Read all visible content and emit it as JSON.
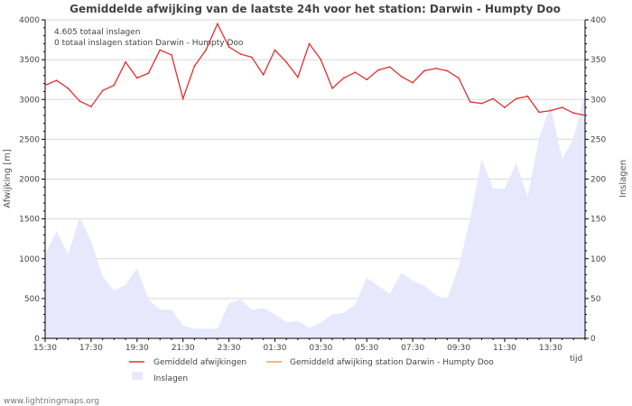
{
  "chart_data": {
    "type": "line",
    "title": "Gemiddelde afwijking van de laatste 24h voor het station: Darwin - Humpty Doo",
    "ylabel_left": "Afwijking  [m]",
    "ylabel_right": "Inslagen",
    "xlabel": "tijd",
    "ylim_left": [
      0,
      4000
    ],
    "ylim_right": [
      0,
      400
    ],
    "yticks_left": [
      0,
      500,
      1000,
      1500,
      2000,
      2500,
      3000,
      3500,
      4000
    ],
    "yticks_right": [
      0,
      50,
      100,
      150,
      200,
      250,
      300,
      350,
      400
    ],
    "xlim": [
      0,
      47
    ],
    "x_ticks": [
      {
        "x": 0,
        "label": "15:30"
      },
      {
        "x": 4,
        "label": "17:30"
      },
      {
        "x": 8,
        "label": "19:30"
      },
      {
        "x": 12,
        "label": "21:30"
      },
      {
        "x": 16,
        "label": "23:30"
      },
      {
        "x": 20,
        "label": "01:30"
      },
      {
        "x": 24,
        "label": "03:30"
      },
      {
        "x": 28,
        "label": "05:30"
      },
      {
        "x": 32,
        "label": "07:30"
      },
      {
        "x": 36,
        "label": "09:30"
      },
      {
        "x": 40,
        "label": "11:30"
      },
      {
        "x": 44,
        "label": "13:30"
      }
    ],
    "annotations": [
      "4.605 totaal inslagen",
      "0 totaal inslagen station Darwin - Humpty Doo"
    ],
    "series": [
      {
        "name": "Gemiddeld afwijkingen",
        "type": "line",
        "axis": "left",
        "color": "#e03030",
        "x": [
          0,
          1,
          2,
          3,
          4,
          5,
          6,
          7,
          8,
          9,
          10,
          11,
          12,
          13,
          14,
          15,
          16,
          17,
          18,
          19,
          20,
          21,
          22,
          23,
          24,
          25,
          26,
          27,
          28,
          29,
          30,
          31,
          32,
          33,
          34,
          35,
          36,
          37,
          38,
          39,
          40,
          41,
          42,
          43,
          44,
          45,
          46,
          47
        ],
        "values": [
          3180,
          3240,
          3140,
          2980,
          2910,
          3110,
          3180,
          3470,
          3270,
          3330,
          3620,
          3560,
          3010,
          3420,
          3620,
          3950,
          3660,
          3570,
          3530,
          3310,
          3620,
          3470,
          3280,
          3700,
          3500,
          3140,
          3270,
          3340,
          3250,
          3370,
          3410,
          3290,
          3210,
          3360,
          3390,
          3360,
          3270,
          2970,
          2950,
          3010,
          2900,
          3010,
          3040,
          2840,
          2860,
          2900,
          2830,
          2800
        ]
      },
      {
        "name": "Gemiddeld afwijking station Darwin - Humpty Doo",
        "type": "line",
        "axis": "left",
        "color": "#f0a050",
        "x": [],
        "values": []
      },
      {
        "name": "Inslagen",
        "type": "area",
        "axis": "right",
        "color": "#e8e8fc",
        "x": [
          0,
          1,
          2,
          3,
          4,
          5,
          6,
          7,
          8,
          9,
          10,
          11,
          12,
          13,
          14,
          15,
          16,
          17,
          18,
          19,
          20,
          21,
          22,
          23,
          24,
          25,
          26,
          27,
          28,
          29,
          30,
          31,
          32,
          33,
          34,
          35,
          36,
          37,
          38,
          39,
          40,
          41,
          42,
          43,
          44,
          45,
          46,
          47
        ],
        "values": [
          105,
          135,
          105,
          152,
          122,
          78,
          60,
          67,
          88,
          49,
          36,
          36,
          16,
          12,
          12,
          12,
          44,
          49,
          36,
          38,
          30,
          20,
          22,
          13,
          20,
          30,
          32,
          43,
          76,
          66,
          56,
          82,
          73,
          66,
          54,
          49,
          90,
          150,
          225,
          188,
          188,
          220,
          178,
          252,
          292,
          225,
          251,
          310
        ]
      }
    ],
    "legend": [
      {
        "label": "Gemiddeld afwijkingen",
        "kind": "line",
        "color": "#e03030"
      },
      {
        "label": "Gemiddeld afwijking station Darwin - Humpty Doo",
        "kind": "line",
        "color": "#f0a050"
      },
      {
        "label": "Inslagen",
        "kind": "area",
        "color": "#e8e8fc"
      }
    ]
  },
  "footer": "www.lightningmaps.org"
}
